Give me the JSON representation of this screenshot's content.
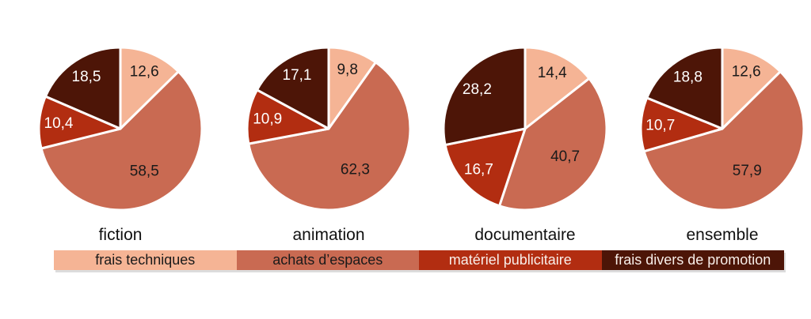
{
  "page": {
    "background_color": "#ffffff"
  },
  "colors": {
    "slice_fills": [
      "#F5B495",
      "#C96A52",
      "#B22D11",
      "#4D1507"
    ],
    "value_text": [
      "#1a1a1a",
      "#1a1a1a",
      "#ffffff",
      "#ffffff"
    ],
    "separator": "#ffffff"
  },
  "chart_data": [
    {
      "type": "pie",
      "title": "fiction",
      "labels": [
        "frais techniques",
        "achats d’espaces",
        "matériel publicitaire",
        "frais divers de promotion"
      ],
      "values": [
        12.6,
        58.5,
        10.4,
        18.5
      ],
      "display_values": [
        "12,6",
        "58,5",
        "10,4",
        "18,5"
      ],
      "start_angle_deg": 0,
      "direction": "clockwise"
    },
    {
      "type": "pie",
      "title": "animation",
      "labels": [
        "frais techniques",
        "achats d’espaces",
        "matériel publicitaire",
        "frais divers de promotion"
      ],
      "values": [
        9.8,
        62.3,
        10.9,
        17.1
      ],
      "display_values": [
        "9,8",
        "62,3",
        "10,9",
        "17,1"
      ],
      "start_angle_deg": 0,
      "direction": "clockwise"
    },
    {
      "type": "pie",
      "title": "documentaire",
      "labels": [
        "frais techniques",
        "achats d’espaces",
        "matériel publicitaire",
        "frais divers de promotion"
      ],
      "values": [
        14.4,
        40.7,
        16.7,
        28.2
      ],
      "display_values": [
        "14,4",
        "40,7",
        "16,7",
        "28,2"
      ],
      "start_angle_deg": 0,
      "direction": "clockwise"
    },
    {
      "type": "pie",
      "title": "ensemble",
      "labels": [
        "frais techniques",
        "achats d’espaces",
        "matériel publicitaire",
        "frais divers de promotion"
      ],
      "values": [
        12.6,
        57.9,
        10.7,
        18.8
      ],
      "display_values": [
        "12,6",
        "57,9",
        "10,7",
        "18,8"
      ],
      "start_angle_deg": 0,
      "direction": "clockwise"
    }
  ],
  "legend": {
    "items": [
      {
        "label": "frais techniques",
        "color": "#F5B495",
        "text_color": "#1a1a1a"
      },
      {
        "label": "achats d’espaces",
        "color": "#C96A52",
        "text_color": "#1a1a1a"
      },
      {
        "label": "matériel publicitaire",
        "color": "#B22D11",
        "text_color": "#F8EFEA"
      },
      {
        "label": "frais divers de promotion",
        "color": "#4D1507",
        "text_color": "#F8EFEA"
      }
    ]
  }
}
